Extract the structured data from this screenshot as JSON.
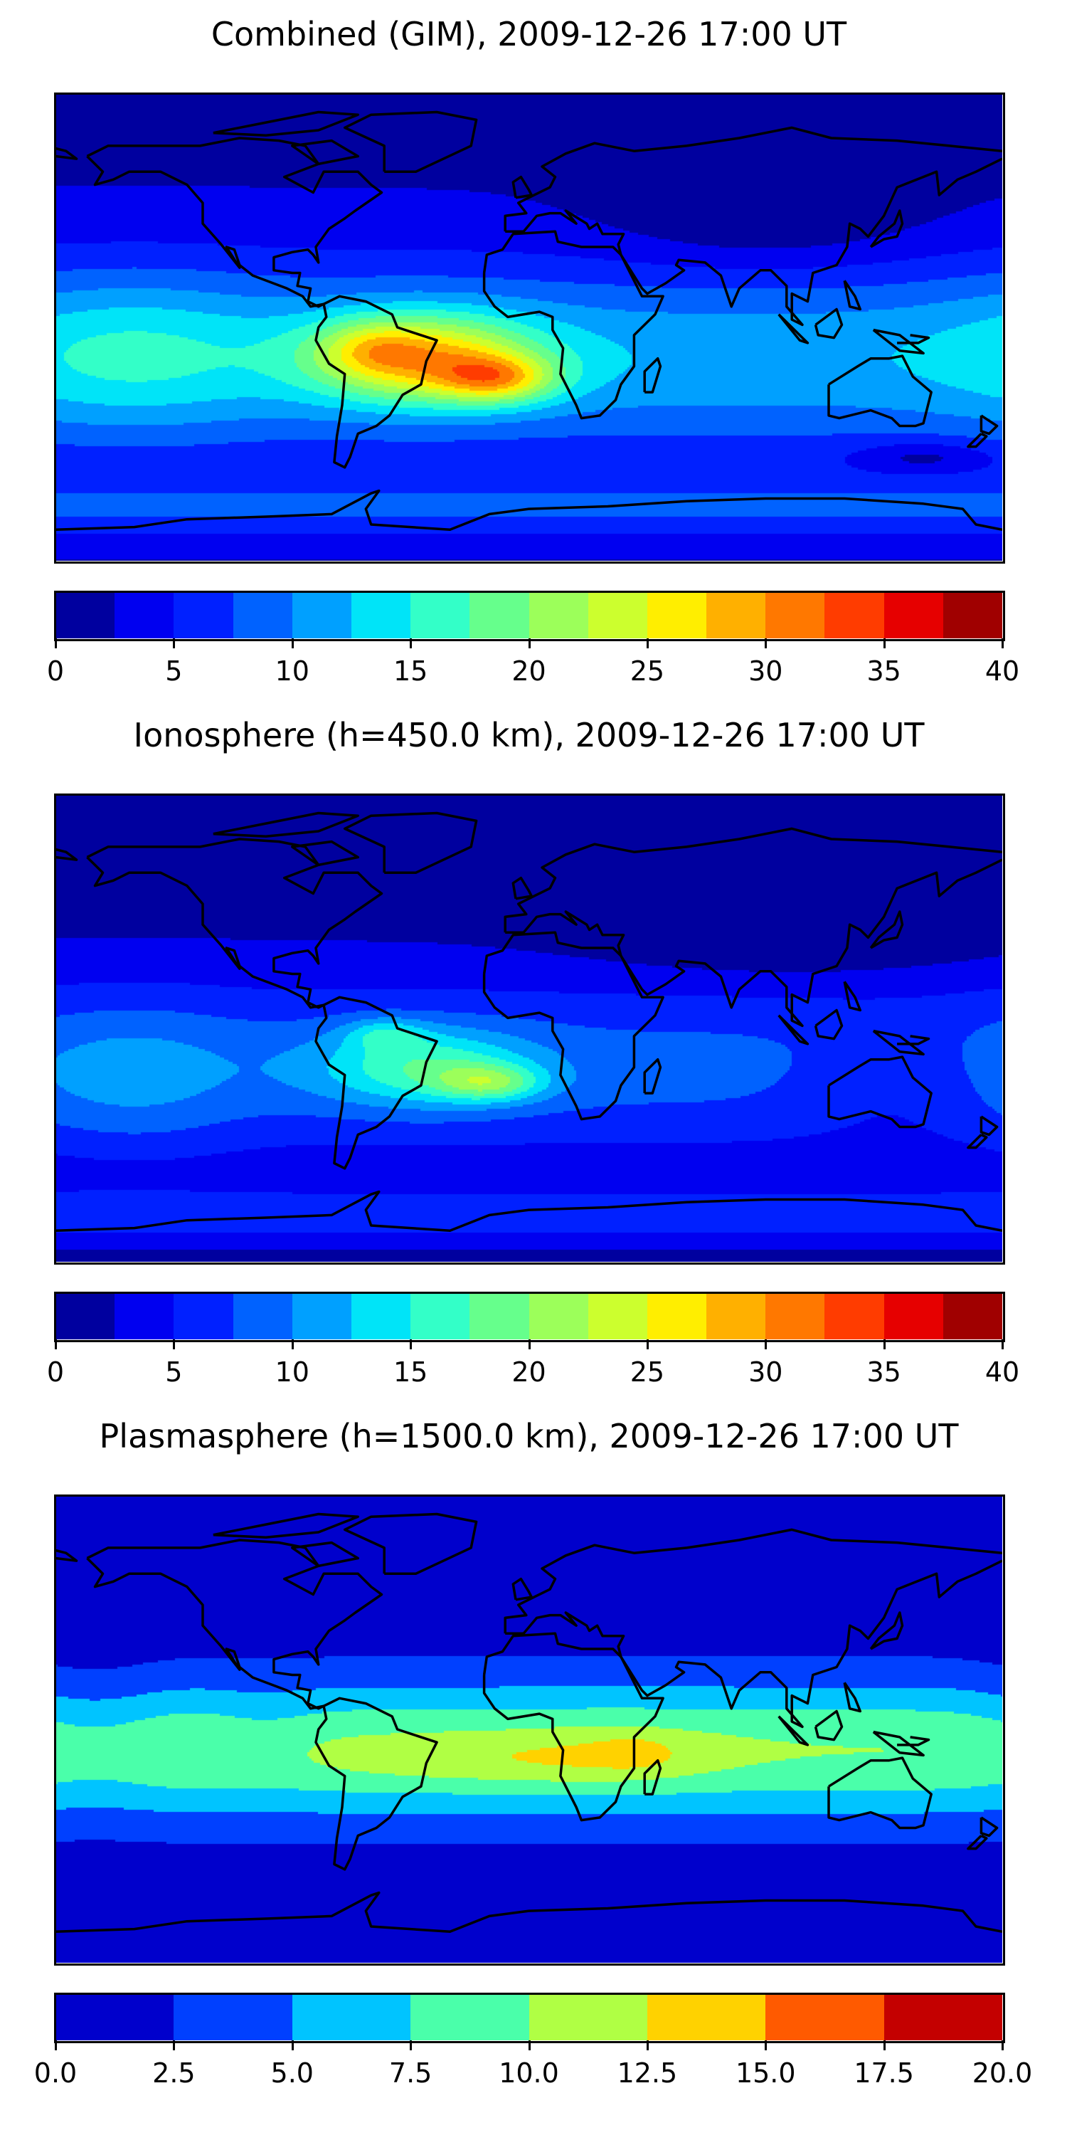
{
  "chart_data": [
    {
      "type": "heatmap",
      "subtype": "filled-contour world map",
      "title": "Combined (GIM), 2009-12-26 17:00 UT",
      "field": "combined",
      "xlim": [
        -180,
        180
      ],
      "ylim": [
        -90,
        90
      ],
      "levels": [
        0,
        2.5,
        5,
        7.5,
        10,
        12.5,
        15,
        17.5,
        20,
        22.5,
        25,
        27.5,
        30,
        32.5,
        35,
        37.5,
        40
      ],
      "colors": [
        "#00009f",
        "#0000f0",
        "#0020ff",
        "#0062ff",
        "#00a0ff",
        "#00e4f8",
        "#33ffc8",
        "#66ff8c",
        "#9cff5a",
        "#ccff2e",
        "#ffee00",
        "#ffb000",
        "#ff7800",
        "#ff3c00",
        "#e60000",
        "#a00000"
      ],
      "colorbar_ticks": [
        "0",
        "5",
        "10",
        "15",
        "20",
        "25",
        "30",
        "35",
        "40"
      ],
      "colorbar_tick_values": [
        0,
        5,
        10,
        15,
        20,
        25,
        30,
        35,
        40
      ],
      "peak": {
        "lon": -12,
        "lat": -20,
        "value": 38
      }
    },
    {
      "type": "heatmap",
      "subtype": "filled-contour world map",
      "title": "Ionosphere  (h=450.0 km), 2009-12-26 17:00 UT",
      "field": "ionosphere",
      "xlim": [
        -180,
        180
      ],
      "ylim": [
        -90,
        90
      ],
      "levels": [
        0,
        2.5,
        5,
        7.5,
        10,
        12.5,
        15,
        17.5,
        20,
        22.5,
        25,
        27.5,
        30,
        32.5,
        35,
        37.5,
        40
      ],
      "colors": [
        "#00009f",
        "#0000f0",
        "#0020ff",
        "#0062ff",
        "#00a0ff",
        "#00e4f8",
        "#33ffc8",
        "#66ff8c",
        "#9cff5a",
        "#ccff2e",
        "#ffee00",
        "#ffb000",
        "#ff7800",
        "#ff3c00",
        "#e60000",
        "#a00000"
      ],
      "colorbar_ticks": [
        "0",
        "5",
        "10",
        "15",
        "20",
        "25",
        "30",
        "35",
        "40"
      ],
      "colorbar_tick_values": [
        0,
        5,
        10,
        15,
        20,
        25,
        30,
        35,
        40
      ],
      "peak": {
        "lon": -15,
        "lat": -20,
        "value": 26
      }
    },
    {
      "type": "heatmap",
      "subtype": "filled-contour world map",
      "title": "Plasmasphere (h=1500.0 km), 2009-12-26 17:00 UT",
      "field": "plasmasphere",
      "xlim": [
        -180,
        180
      ],
      "ylim": [
        -90,
        90
      ],
      "levels": [
        0,
        2.5,
        5,
        7.5,
        10,
        12.5,
        15,
        17.5,
        20
      ],
      "colors": [
        "#0000cc",
        "#0040ff",
        "#00c4ff",
        "#4affaa",
        "#b0ff44",
        "#ffd200",
        "#ff5a00",
        "#c40000"
      ],
      "colorbar_ticks": [
        "0.0",
        "2.5",
        "5.0",
        "7.5",
        "10.0",
        "12.5",
        "15.0",
        "17.5",
        "20.0"
      ],
      "colorbar_tick_values": [
        0,
        2.5,
        5,
        7.5,
        10,
        12.5,
        15,
        17.5,
        20
      ],
      "peak": {
        "lon": 40,
        "lat": -8,
        "value": 14
      }
    }
  ]
}
